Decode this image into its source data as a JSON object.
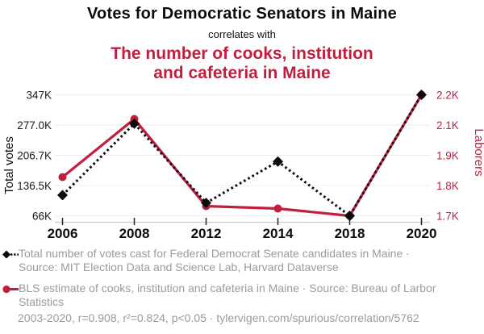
{
  "header": {
    "title": "Votes for Democratic Senators in Maine",
    "subtitle": "correlates with",
    "red_title_line1": "The number of cooks, institution",
    "red_title_line2": "and cafeteria in Maine"
  },
  "colors": {
    "series_votes": "#0b0b0b",
    "series_cooks": "#c01f3d",
    "grid": "#ededed",
    "axis_line": "#cccccc",
    "x_tick": "#222222",
    "legend_text": "#9b9b9b"
  },
  "chart_data": {
    "type": "line",
    "x": [
      2006,
      2008,
      2012,
      2014,
      2018,
      2020
    ],
    "x_tick_labels": [
      "2006",
      "2008",
      "2012",
      "2014",
      "2018",
      "2020"
    ],
    "series": [
      {
        "id": "votes",
        "name": "Total number of votes cast for Federal Democrat Senate candidates in Maine",
        "axis": "left",
        "values": [
          114000,
          280000,
          96000,
          192000,
          66000,
          347000
        ],
        "color": "#0b0b0b",
        "style": "dotted",
        "marker": "diamond"
      },
      {
        "id": "cooks",
        "name": "BLS estimate of cooks, institution and cafeteria in Maine",
        "axis": "right",
        "values": [
          1860,
          2100,
          1740,
          1730,
          1700,
          2200
        ],
        "color": "#c01f3d",
        "style": "solid",
        "marker": "circle"
      }
    ],
    "left_axis": {
      "label": "Total votes",
      "ticks": [
        "347K",
        "277.0K",
        "206.7K",
        "136.5K",
        "66K"
      ],
      "min": 66000,
      "max": 347000
    },
    "right_axis": {
      "label": "Laborers",
      "ticks": [
        "2.2K",
        "2.1K",
        "1.9K",
        "1.8K",
        "1.7K"
      ],
      "min": 1700,
      "max": 2200
    },
    "grid": true,
    "legend_position": "bottom"
  },
  "legend": {
    "entries": [
      {
        "marker": "black-diamond-dotted-line",
        "label": "Total number of votes cast for Federal Democrat Senate candidates in Maine · Source: MIT Election Data and Science Lab, Harvard Dataverse"
      },
      {
        "marker": "red-circle-solid-line",
        "label": "BLS estimate of cooks, institution and cafeteria in Maine · Source: Bureau of Larbor Statistics"
      }
    ]
  },
  "footer": {
    "text": "2003-2020, r=0.908, r²=0.824, p<0.05 · tylervigen.com/spurious/correlation/5762"
  }
}
